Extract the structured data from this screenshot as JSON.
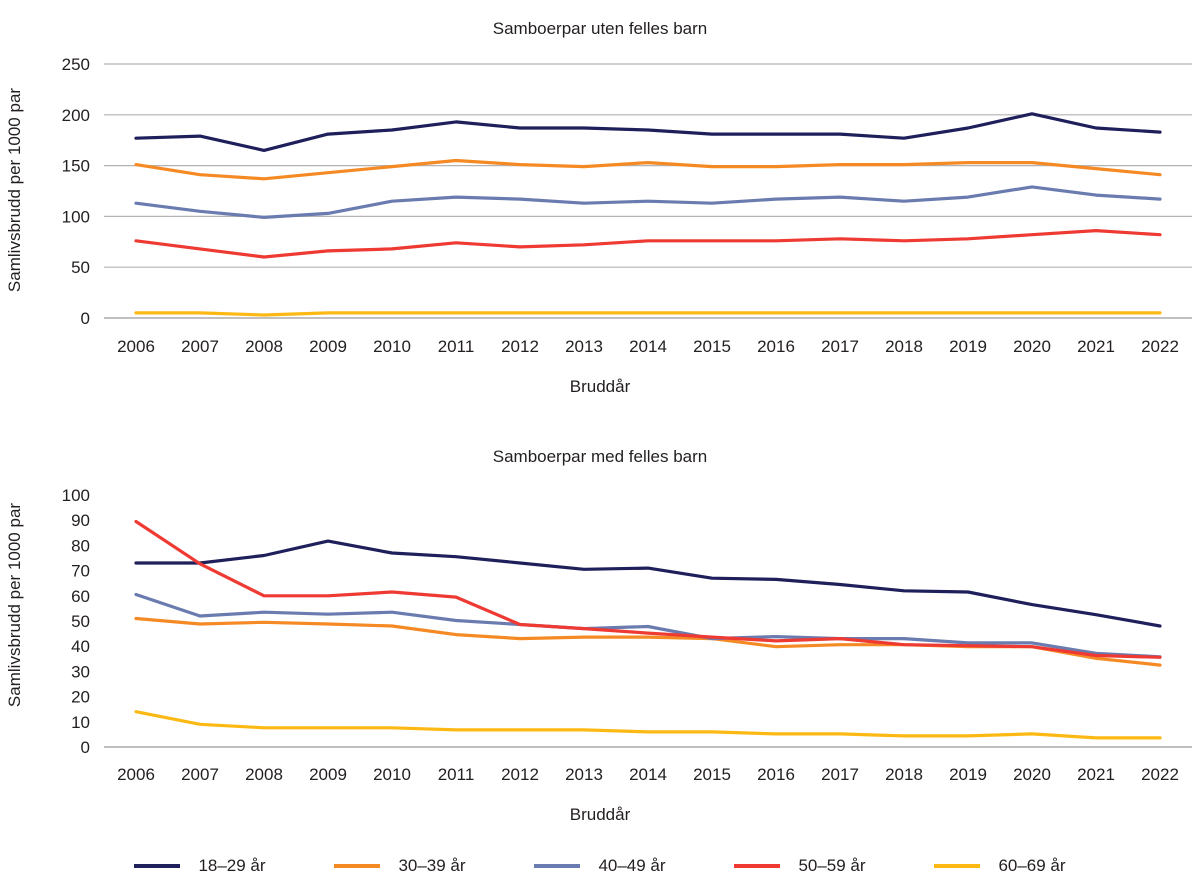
{
  "chart_data": [
    {
      "type": "line",
      "title": "Samboerpar uten felles barn",
      "xlabel": "Bruddår",
      "ylabel": "Samlivsbrudd per 1000 par",
      "ylim": [
        0,
        250
      ],
      "yticks": [
        0,
        50,
        100,
        150,
        200,
        250
      ],
      "grid": true,
      "categories": [
        "2006",
        "2007",
        "2008",
        "2009",
        "2010",
        "2011",
        "2012",
        "2013",
        "2014",
        "2015",
        "2016",
        "2017",
        "2018",
        "2019",
        "2020",
        "2021",
        "2022"
      ],
      "series": [
        {
          "name": "18–29 år",
          "color": "#1f1f5c",
          "values": [
            177,
            179,
            165,
            181,
            185,
            193,
            187,
            187,
            185,
            181,
            181,
            181,
            177,
            187,
            201,
            187,
            183
          ]
        },
        {
          "name": "30–39 år",
          "color": "#f58a25",
          "values": [
            151,
            141,
            137,
            143,
            149,
            155,
            151,
            149,
            153,
            149,
            149,
            151,
            151,
            153,
            153,
            147,
            141
          ]
        },
        {
          "name": "40–49 år",
          "color": "#6a7bb0",
          "values": [
            113,
            105,
            99,
            103,
            115,
            119,
            117,
            113,
            115,
            113,
            117,
            119,
            115,
            119,
            129,
            121,
            117
          ]
        },
        {
          "name": "50–59 år",
          "color": "#ee3a33",
          "values": [
            76,
            68,
            60,
            66,
            68,
            74,
            70,
            72,
            76,
            76,
            76,
            78,
            76,
            78,
            82,
            86,
            82
          ]
        },
        {
          "name": "60–69 år",
          "color": "#fdb913",
          "values": [
            5,
            5,
            3,
            5,
            5,
            5,
            5,
            5,
            5,
            5,
            5,
            5,
            5,
            5,
            5,
            5,
            5
          ]
        }
      ]
    },
    {
      "type": "line",
      "title": "Samboerpar med felles barn",
      "xlabel": "Bruddår",
      "ylabel": "Samlivsbrudd per 1000 par",
      "ylim": [
        0,
        100
      ],
      "yticks": [
        0,
        10,
        20,
        30,
        40,
        50,
        60,
        70,
        80,
        90,
        100
      ],
      "grid": false,
      "categories": [
        "2006",
        "2007",
        "2008",
        "2009",
        "2010",
        "2011",
        "2012",
        "2013",
        "2014",
        "2015",
        "2016",
        "2017",
        "2018",
        "2019",
        "2020",
        "2021",
        "2022"
      ],
      "series": [
        {
          "name": "18–29 år",
          "color": "#1f1f5c",
          "values": [
            73,
            73,
            76,
            81.7,
            77,
            75.5,
            73,
            70.5,
            71,
            67,
            66.5,
            64.5,
            62,
            61.5,
            56.5,
            52.5,
            48
          ]
        },
        {
          "name": "30–39 år",
          "color": "#f58a25",
          "values": [
            51,
            48.8,
            49.5,
            48.8,
            48,
            44.6,
            43,
            43.6,
            43.6,
            43,
            39.8,
            40.6,
            40.6,
            39.8,
            39.8,
            35.2,
            32.5
          ]
        },
        {
          "name": "40–49 år",
          "color": "#6a7bb0",
          "values": [
            60.5,
            52,
            53.5,
            52.7,
            53.5,
            50.2,
            48.6,
            47,
            47.8,
            43,
            43.8,
            43,
            43,
            41.3,
            41.3,
            37.2,
            35.8
          ]
        },
        {
          "name": "50–59 år",
          "color": "#ee3a33",
          "values": [
            89.5,
            72.7,
            60,
            60,
            61.5,
            59.5,
            48.6,
            47,
            45.2,
            43.6,
            42.1,
            43,
            40.6,
            40.2,
            39.8,
            36.3,
            35.6
          ]
        },
        {
          "name": "60–69 år",
          "color": "#fdb913",
          "values": [
            14,
            9,
            7.6,
            7.6,
            7.6,
            6.8,
            6.8,
            6.8,
            6,
            6,
            5.2,
            5.2,
            4.4,
            4.4,
            5.2,
            3.6,
            3.6
          ]
        }
      ]
    }
  ],
  "legend": {
    "placement": "bottom",
    "items": [
      {
        "label": "18–29 år",
        "color": "#1f1f5c"
      },
      {
        "label": "30–39 år",
        "color": "#f58a25"
      },
      {
        "label": "40–49 år",
        "color": "#6a7bb0"
      },
      {
        "label": "50–59 år",
        "color": "#ee3a33"
      },
      {
        "label": "60–69 år",
        "color": "#fdb913"
      }
    ]
  }
}
